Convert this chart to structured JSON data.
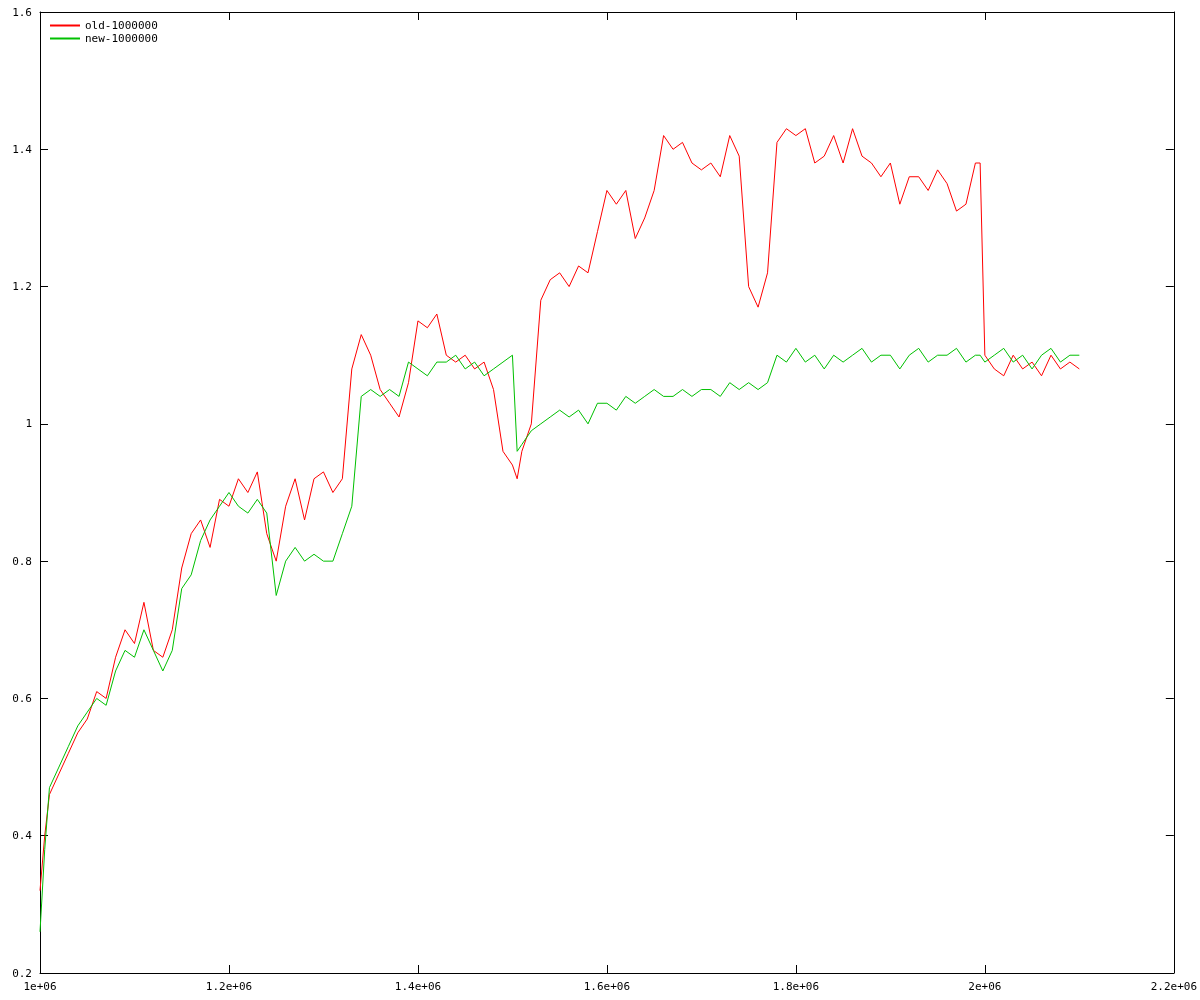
{
  "chart_data": {
    "type": "line",
    "xlim": [
      1000000,
      2200000
    ],
    "ylim": [
      0.2,
      1.6
    ],
    "xticks": [
      {
        "value": 1000000,
        "label": "1e+06"
      },
      {
        "value": 1200000,
        "label": "1.2e+06"
      },
      {
        "value": 1400000,
        "label": "1.4e+06"
      },
      {
        "value": 1600000,
        "label": "1.6e+06"
      },
      {
        "value": 1800000,
        "label": "1.8e+06"
      },
      {
        "value": 2000000,
        "label": "2e+06"
      },
      {
        "value": 2200000,
        "label": "2.2e+06"
      }
    ],
    "yticks": [
      0.2,
      0.4,
      0.6,
      0.8,
      1,
      1.2,
      1.4,
      1.6
    ],
    "grid": false,
    "legend": "top left",
    "marker": "none",
    "line_style": "solid",
    "x": [
      1000000,
      1005000,
      1010000,
      1020000,
      1030000,
      1040000,
      1050000,
      1060000,
      1070000,
      1080000,
      1090000,
      1100000,
      1110000,
      1120000,
      1130000,
      1140000,
      1150000,
      1160000,
      1170000,
      1180000,
      1190000,
      1200000,
      1210000,
      1220000,
      1230000,
      1240000,
      1250000,
      1260000,
      1270000,
      1280000,
      1290000,
      1300000,
      1310000,
      1320000,
      1330000,
      1340000,
      1350000,
      1360000,
      1370000,
      1380000,
      1390000,
      1400000,
      1410000,
      1420000,
      1430000,
      1440000,
      1450000,
      1460000,
      1470000,
      1480000,
      1490000,
      1500000,
      1505000,
      1510000,
      1520000,
      1530000,
      1540000,
      1550000,
      1560000,
      1570000,
      1580000,
      1590000,
      1600000,
      1610000,
      1620000,
      1630000,
      1640000,
      1650000,
      1660000,
      1670000,
      1680000,
      1690000,
      1700000,
      1710000,
      1720000,
      1730000,
      1740000,
      1750000,
      1760000,
      1770000,
      1780000,
      1790000,
      1800000,
      1810000,
      1820000,
      1830000,
      1840000,
      1850000,
      1860000,
      1870000,
      1880000,
      1890000,
      1900000,
      1910000,
      1920000,
      1930000,
      1940000,
      1950000,
      1960000,
      1970000,
      1980000,
      1990000,
      1995000,
      2000000,
      2010000,
      2020000,
      2030000,
      2040000,
      2050000,
      2060000,
      2070000,
      2080000,
      2090000,
      2100000
    ],
    "series": [
      {
        "name": "old-1000000",
        "color": "#ff0000",
        "values": [
          0.32,
          0.4,
          0.46,
          0.49,
          0.52,
          0.55,
          0.57,
          0.61,
          0.6,
          0.66,
          0.7,
          0.68,
          0.74,
          0.67,
          0.66,
          0.7,
          0.79,
          0.84,
          0.86,
          0.82,
          0.89,
          0.88,
          0.92,
          0.9,
          0.93,
          0.84,
          0.8,
          0.88,
          0.92,
          0.86,
          0.92,
          0.93,
          0.9,
          0.92,
          1.08,
          1.13,
          1.1,
          1.05,
          1.03,
          1.01,
          1.06,
          1.15,
          1.14,
          1.16,
          1.1,
          1.09,
          1.1,
          1.08,
          1.09,
          1.05,
          0.96,
          0.94,
          0.92,
          0.96,
          1.0,
          1.18,
          1.21,
          1.22,
          1.2,
          1.23,
          1.22,
          1.28,
          1.34,
          1.32,
          1.34,
          1.27,
          1.3,
          1.34,
          1.42,
          1.4,
          1.41,
          1.38,
          1.37,
          1.38,
          1.36,
          1.42,
          1.39,
          1.2,
          1.17,
          1.22,
          1.41,
          1.43,
          1.42,
          1.43,
          1.38,
          1.39,
          1.42,
          1.38,
          1.43,
          1.39,
          1.38,
          1.36,
          1.38,
          1.32,
          1.36,
          1.36,
          1.34,
          1.37,
          1.35,
          1.31,
          1.32,
          1.38,
          1.38,
          1.1,
          1.08,
          1.07,
          1.1,
          1.08,
          1.09,
          1.07,
          1.1,
          1.08,
          1.09,
          1.08
        ]
      },
      {
        "name": "new-1000000",
        "color": "#00c000",
        "values": [
          0.26,
          0.38,
          0.47,
          0.5,
          0.53,
          0.56,
          0.58,
          0.6,
          0.59,
          0.64,
          0.67,
          0.66,
          0.7,
          0.67,
          0.64,
          0.67,
          0.76,
          0.78,
          0.83,
          0.86,
          0.88,
          0.9,
          0.88,
          0.87,
          0.89,
          0.87,
          0.75,
          0.8,
          0.82,
          0.8,
          0.81,
          0.8,
          0.8,
          0.84,
          0.88,
          1.04,
          1.05,
          1.04,
          1.05,
          1.04,
          1.09,
          1.08,
          1.07,
          1.09,
          1.09,
          1.1,
          1.08,
          1.09,
          1.07,
          1.08,
          1.09,
          1.1,
          0.96,
          0.97,
          0.99,
          1.0,
          1.01,
          1.02,
          1.01,
          1.02,
          1.0,
          1.03,
          1.03,
          1.02,
          1.04,
          1.03,
          1.04,
          1.05,
          1.04,
          1.04,
          1.05,
          1.04,
          1.05,
          1.05,
          1.04,
          1.06,
          1.05,
          1.06,
          1.05,
          1.06,
          1.1,
          1.09,
          1.11,
          1.09,
          1.1,
          1.08,
          1.1,
          1.09,
          1.1,
          1.11,
          1.09,
          1.1,
          1.1,
          1.08,
          1.1,
          1.11,
          1.09,
          1.1,
          1.1,
          1.11,
          1.09,
          1.1,
          1.1,
          1.09,
          1.1,
          1.11,
          1.09,
          1.1,
          1.08,
          1.1,
          1.11,
          1.09,
          1.1,
          1.1
        ]
      }
    ]
  }
}
